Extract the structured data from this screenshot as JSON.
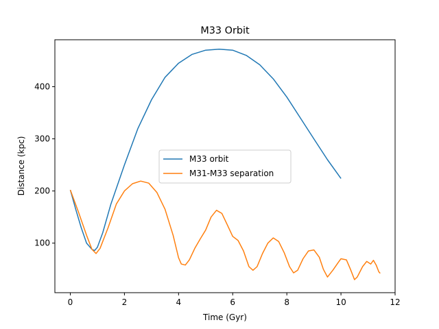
{
  "chart_data": {
    "type": "line",
    "title": "M33 Orbit",
    "xlabel": "Time (Gyr)",
    "ylabel": "Distance (kpc)",
    "xlim": [
      -0.57,
      12.0
    ],
    "ylim": [
      5,
      490
    ],
    "xticks": [
      0,
      2,
      4,
      6,
      8,
      10,
      12
    ],
    "yticks": [
      100,
      200,
      300,
      400
    ],
    "grid": false,
    "legend_position": "center",
    "series": [
      {
        "name": "M33 orbit",
        "color": "#1f77b4",
        "x": [
          0,
          0.2,
          0.4,
          0.6,
          0.8,
          0.9,
          1.0,
          1.2,
          1.5,
          2.0,
          2.5,
          3.0,
          3.5,
          4.0,
          4.5,
          5.0,
          5.5,
          6.0,
          6.5,
          7.0,
          7.5,
          8.0,
          8.5,
          9.0,
          9.5,
          10.0
        ],
        "y": [
          202,
          165,
          130,
          100,
          88,
          86,
          92,
          120,
          175,
          250,
          320,
          375,
          418,
          445,
          462,
          470,
          472,
          470,
          460,
          442,
          415,
          380,
          340,
          300,
          260,
          224
        ]
      },
      {
        "name": "M31-M33 separation",
        "color": "#ff7f0e",
        "x": [
          0,
          0.3,
          0.6,
          0.8,
          0.95,
          1.1,
          1.4,
          1.7,
          2.0,
          2.3,
          2.6,
          2.9,
          3.2,
          3.5,
          3.8,
          4.0,
          4.1,
          4.25,
          4.4,
          4.6,
          4.8,
          5.0,
          5.2,
          5.4,
          5.6,
          5.8,
          6.0,
          6.2,
          6.4,
          6.6,
          6.75,
          6.9,
          7.1,
          7.3,
          7.5,
          7.7,
          7.9,
          8.1,
          8.25,
          8.4,
          8.6,
          8.8,
          9.0,
          9.2,
          9.35,
          9.5,
          9.7,
          9.9,
          10.0,
          10.2,
          10.35,
          10.5,
          10.6,
          10.8,
          10.95,
          11.1,
          11.2,
          11.3,
          11.4,
          11.45
        ],
        "y": [
          202,
          160,
          115,
          88,
          80,
          90,
          130,
          175,
          200,
          214,
          219,
          215,
          197,
          165,
          115,
          72,
          60,
          58,
          68,
          90,
          108,
          125,
          150,
          163,
          157,
          135,
          113,
          105,
          85,
          55,
          48,
          55,
          80,
          100,
          110,
          103,
          82,
          55,
          43,
          48,
          70,
          85,
          87,
          73,
          50,
          35,
          48,
          63,
          70,
          68,
          50,
          30,
          35,
          55,
          65,
          60,
          67,
          58,
          45,
          42
        ]
      }
    ]
  }
}
